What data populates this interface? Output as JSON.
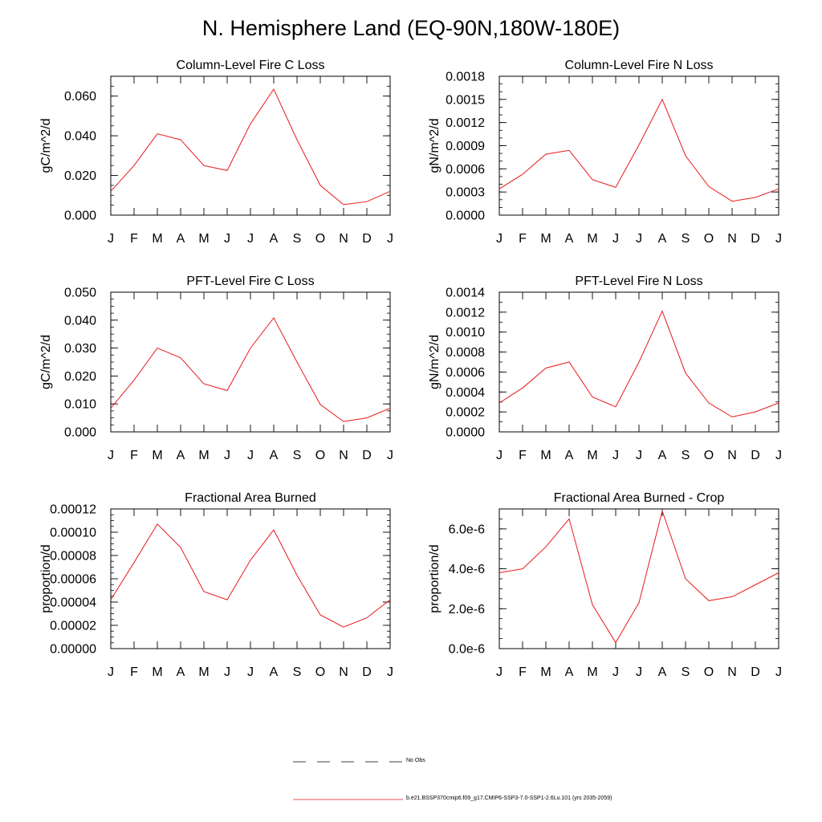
{
  "page_title": "N. Hemisphere Land (EQ-90N,180W-180E)",
  "colors": {
    "model_line": "#e8191a",
    "obs_line": "#000000",
    "axes": "#000000"
  },
  "legend": [
    {
      "label": "No Obs",
      "style": "dashed",
      "color": "#000000"
    },
    {
      "label": "b.e21.BSSP370cmip6.f09_g17.CMIP6-SSP3-7.0-SSP1-2.6Lu.101 (yrs 2035-2059)",
      "style": "solid",
      "color": "#e8191a"
    }
  ],
  "chart_data": [
    {
      "type": "line",
      "title": "Column-Level Fire C Loss",
      "ylabel": "gC/m^2/d",
      "xlabel": "",
      "categories": [
        "J",
        "F",
        "M",
        "A",
        "M",
        "J",
        "J",
        "A",
        "S",
        "O",
        "N",
        "D",
        "J"
      ],
      "ylim": [
        0,
        0.07
      ],
      "yticks": [
        0.0,
        0.02,
        0.04,
        0.06
      ],
      "ytick_labels": [
        "0.000",
        "0.020",
        "0.040",
        "0.060"
      ],
      "yminor": 0.005,
      "series": [
        {
          "values": [
            0.012,
            0.025,
            0.041,
            0.038,
            0.025,
            0.0225,
            0.046,
            0.0635,
            0.038,
            0.015,
            0.0053,
            0.0068,
            0.012
          ]
        }
      ]
    },
    {
      "type": "line",
      "title": "Column-Level Fire N Loss",
      "ylabel": "gN/m^2/d",
      "xlabel": "",
      "categories": [
        "J",
        "F",
        "M",
        "A",
        "M",
        "J",
        "J",
        "A",
        "S",
        "O",
        "N",
        "D",
        "J"
      ],
      "ylim": [
        0,
        0.0018
      ],
      "yticks": [
        0.0,
        0.0003,
        0.0006,
        0.0009,
        0.0012,
        0.0015,
        0.0018
      ],
      "ytick_labels": [
        "0.0000",
        "0.0003",
        "0.0006",
        "0.0009",
        "0.0012",
        "0.0015",
        "0.0018"
      ],
      "yminor": 0.0001,
      "series": [
        {
          "values": [
            0.00034,
            0.00053,
            0.00079,
            0.00084,
            0.00046,
            0.00036,
            0.00091,
            0.0015,
            0.00077,
            0.00037,
            0.00018,
            0.00023,
            0.00034
          ]
        }
      ]
    },
    {
      "type": "line",
      "title": "PFT-Level Fire C Loss",
      "ylabel": "gC/m^2/d",
      "xlabel": "",
      "categories": [
        "J",
        "F",
        "M",
        "A",
        "M",
        "J",
        "J",
        "A",
        "S",
        "O",
        "N",
        "D",
        "J"
      ],
      "ylim": [
        0,
        0.05
      ],
      "yticks": [
        0.0,
        0.01,
        0.02,
        0.03,
        0.04,
        0.05
      ],
      "ytick_labels": [
        "0.000",
        "0.010",
        "0.020",
        "0.030",
        "0.040",
        "0.050"
      ],
      "yminor": 0.0025,
      "series": [
        {
          "values": [
            0.0085,
            0.0185,
            0.03,
            0.0265,
            0.0172,
            0.0148,
            0.03,
            0.0408,
            0.025,
            0.0098,
            0.0037,
            0.005,
            0.0085
          ]
        }
      ]
    },
    {
      "type": "line",
      "title": "PFT-Level Fire N Loss",
      "ylabel": "gN/m^2/d",
      "xlabel": "",
      "categories": [
        "J",
        "F",
        "M",
        "A",
        "M",
        "J",
        "J",
        "A",
        "S",
        "O",
        "N",
        "D",
        "J"
      ],
      "ylim": [
        0,
        0.0014
      ],
      "yticks": [
        0.0,
        0.0002,
        0.0004,
        0.0006,
        0.0008,
        0.001,
        0.0012,
        0.0014
      ],
      "ytick_labels": [
        "0.0000",
        "0.0002",
        "0.0004",
        "0.0006",
        "0.0008",
        "0.0010",
        "0.0012",
        "0.0014"
      ],
      "yminor": 0.0001,
      "series": [
        {
          "values": [
            0.00029,
            0.00044,
            0.00064,
            0.0007,
            0.00035,
            0.00025,
            0.0007,
            0.00121,
            0.00059,
            0.00029,
            0.00015,
            0.0002,
            0.00029
          ]
        }
      ]
    },
    {
      "type": "line",
      "title": "Fractional Area Burned",
      "ylabel": "proportion/d",
      "xlabel": "",
      "categories": [
        "J",
        "F",
        "M",
        "A",
        "M",
        "J",
        "J",
        "A",
        "S",
        "O",
        "N",
        "D",
        "J"
      ],
      "ylim": [
        0,
        0.00012
      ],
      "yticks": [
        0.0,
        2e-05,
        4e-05,
        6e-05,
        8e-05,
        0.0001,
        0.00012
      ],
      "ytick_labels": [
        "0.00000",
        "0.00002",
        "0.00004",
        "0.00006",
        "0.00008",
        "0.00010",
        "0.00012"
      ],
      "yminor": 5e-06,
      "series": [
        {
          "values": [
            4.2e-05,
            7.4e-05,
            0.000107,
            8.7e-05,
            4.9e-05,
            4.2e-05,
            7.6e-05,
            0.000102,
            6.3e-05,
            2.9e-05,
            1.85e-05,
            2.65e-05,
            4.2e-05
          ]
        }
      ]
    },
    {
      "type": "line",
      "title": "Fractional Area Burned - Crop",
      "ylabel": "proportion/d",
      "xlabel": "",
      "categories": [
        "J",
        "F",
        "M",
        "A",
        "M",
        "J",
        "J",
        "A",
        "S",
        "O",
        "N",
        "D",
        "J"
      ],
      "ylim": [
        0,
        7e-06
      ],
      "yticks": [
        0.0,
        2e-06,
        4e-06,
        6e-06
      ],
      "ytick_labels": [
        "0.0e-6",
        "2.0e-6",
        "4.0e-6",
        "6.0e-6"
      ],
      "yminor": 5e-07,
      "series": [
        {
          "values": [
            3.8e-06,
            4e-06,
            5.1e-06,
            6.5e-06,
            2.2e-06,
            3e-07,
            2.3e-06,
            6.9e-06,
            3.5e-06,
            2.4e-06,
            2.6e-06,
            3.2e-06,
            3.8e-06
          ]
        }
      ]
    }
  ]
}
